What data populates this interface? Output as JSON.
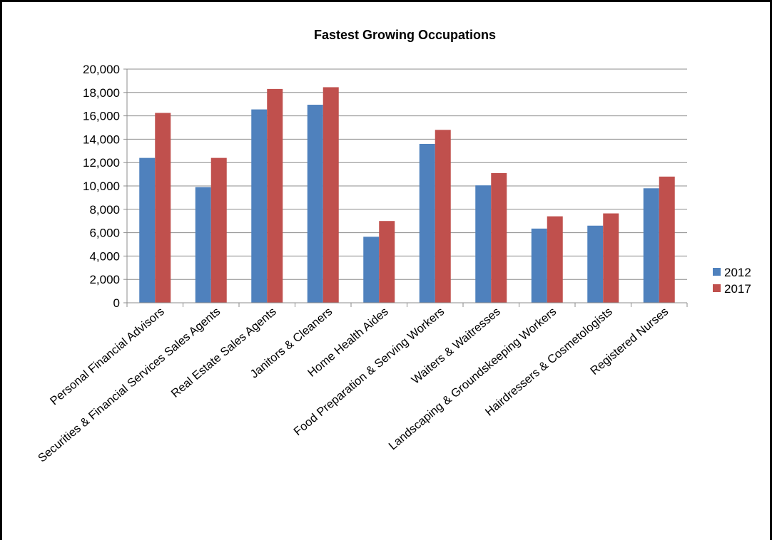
{
  "chart_data": {
    "type": "bar",
    "title": "Fastest Growing Occupations",
    "xlabel": "",
    "ylabel": "",
    "categories": [
      "Personal Financial Advisors",
      "Securities & Financial Services Sales Agents",
      "Real Estate Sales Agents",
      "Janitors & Cleaners",
      "Home Health Aides",
      "Food Preparation & Serving Workers",
      "Waiters & Waitresses",
      "Landscaping & Groundskeeping Workers",
      "Hairdressers & Cosmetologists",
      "Registered Nurses"
    ],
    "series": [
      {
        "name": "2012",
        "color": "#4f81bd",
        "values": [
          12400,
          9900,
          16550,
          16950,
          5650,
          13600,
          10050,
          6350,
          6600,
          9800
        ]
      },
      {
        "name": "2017",
        "color": "#c0504d",
        "values": [
          16250,
          12400,
          18300,
          18450,
          7000,
          14800,
          11100,
          7400,
          7650,
          10800
        ]
      }
    ],
    "ylim": [
      0,
      20000
    ],
    "yticks": [
      "0",
      "2,000",
      "4,000",
      "6,000",
      "8,000",
      "10,000",
      "12,000",
      "14,000",
      "16,000",
      "18,000",
      "20,000"
    ],
    "grid": true,
    "legend_position": "right"
  }
}
